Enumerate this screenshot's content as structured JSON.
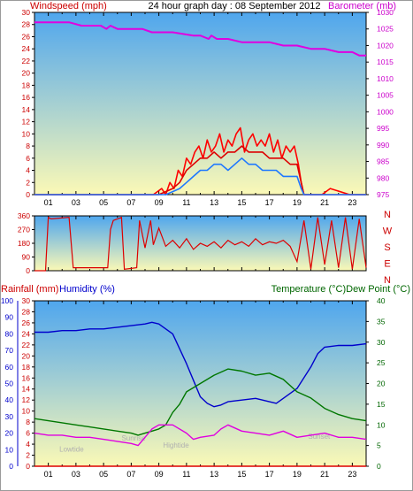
{
  "header": {
    "left_title": "Windspeed (mph)",
    "center_title": "24 hour graph day : 08 September 2012",
    "right_title": "Barometer (mb)"
  },
  "colors": {
    "windspeed": "#dd0000",
    "gust": "#ff0000",
    "average": "#1e78ff",
    "barometer": "#e000e0",
    "direction": "#dd0000",
    "rainfall": "#dd0000",
    "humidity": "#0000cc",
    "temperature": "#007700",
    "dewpoint": "#e000e0",
    "sky_top": "#4fa6ee",
    "sky_bottom": "#fbf9b6"
  },
  "chart_data": [
    {
      "type": "line",
      "name": "wind-and-barometer",
      "x_tick_labels": [
        "01",
        "03",
        "05",
        "07",
        "09",
        "11",
        "13",
        "15",
        "17",
        "19",
        "21",
        "23"
      ],
      "xlim": [
        0,
        24
      ],
      "left_axis": {
        "label": "Windspeed (mph)",
        "ylim": [
          0,
          30
        ],
        "ticks": [
          0,
          2,
          4,
          6,
          8,
          10,
          12,
          14,
          16,
          18,
          20,
          22,
          24,
          26,
          28,
          30
        ]
      },
      "right_axis": {
        "label": "Barometer (mb)",
        "ylim": [
          975,
          1030
        ],
        "ticks": [
          975,
          980,
          985,
          990,
          995,
          1000,
          1005,
          1010,
          1015,
          1020,
          1025,
          1030
        ]
      },
      "series": [
        {
          "name": "gust",
          "axis": "left",
          "x": [
            0,
            8.6,
            9.2,
            9.5,
            9.8,
            10.1,
            10.4,
            10.7,
            11.0,
            11.3,
            11.6,
            11.9,
            12.2,
            12.5,
            12.8,
            13.1,
            13.4,
            13.7,
            14.0,
            14.3,
            14.6,
            14.9,
            15.2,
            15.5,
            15.8,
            16.1,
            16.4,
            16.7,
            17.0,
            17.3,
            17.6,
            17.9,
            18.2,
            18.5,
            18.8,
            19.1,
            19.3,
            19.5,
            20.8,
            21.4,
            22.8,
            24
          ],
          "y": [
            0,
            0,
            1,
            0,
            2,
            1,
            4,
            3,
            6,
            5,
            7,
            8,
            6,
            9,
            7,
            8,
            10,
            7,
            9,
            8,
            10,
            11,
            7,
            9,
            10,
            8,
            9,
            8,
            10,
            7,
            9,
            6,
            8,
            7,
            8,
            5,
            2,
            0,
            0,
            1,
            0,
            0
          ]
        },
        {
          "name": "windspeed",
          "axis": "left",
          "x": [
            0,
            9.0,
            9.5,
            10.0,
            10.5,
            11.0,
            11.5,
            12.0,
            12.5,
            13.0,
            13.5,
            14.0,
            14.5,
            15.0,
            15.5,
            16.0,
            16.5,
            17.0,
            17.5,
            18.0,
            18.5,
            19.0,
            19.3,
            19.5,
            24
          ],
          "y": [
            0,
            0,
            0.5,
            1,
            2,
            4,
            5,
            6,
            6,
            7,
            6,
            7,
            7,
            8,
            7,
            7,
            7,
            6,
            6,
            6,
            5,
            5,
            2,
            0,
            0
          ]
        },
        {
          "name": "average",
          "axis": "left",
          "x": [
            0,
            9.5,
            10.0,
            10.5,
            11.0,
            11.5,
            12.0,
            12.5,
            13.0,
            13.5,
            14.0,
            14.5,
            15.0,
            15.5,
            16.0,
            16.5,
            17.0,
            17.5,
            18.0,
            18.5,
            19.0,
            19.3,
            19.5,
            24
          ],
          "y": [
            0,
            0,
            0.5,
            1,
            2,
            3,
            4,
            4,
            5,
            5,
            4,
            5,
            6,
            5,
            5,
            4,
            4,
            4,
            3,
            3,
            3,
            1,
            0,
            0
          ]
        },
        {
          "name": "barometer",
          "axis": "right",
          "x": [
            0,
            0.5,
            1.5,
            2.5,
            3.4,
            3.5,
            4.8,
            5.2,
            5.5,
            6.0,
            7.0,
            7.8,
            8.5,
            10.0,
            11.5,
            12.0,
            12.6,
            12.8,
            13.2,
            14.0,
            15.0,
            16.0,
            17.0,
            18.0,
            19.0,
            20.0,
            21.0,
            22.0,
            23.0,
            23.5,
            24
          ],
          "y": [
            1027,
            1027,
            1027,
            1027,
            1026,
            1026,
            1026,
            1025,
            1026,
            1025,
            1025,
            1025,
            1024,
            1024,
            1023,
            1023,
            1022,
            1023,
            1022,
            1022,
            1021,
            1021,
            1021,
            1020,
            1020,
            1019,
            1019,
            1018,
            1018,
            1017,
            1017
          ]
        }
      ]
    },
    {
      "type": "line",
      "name": "wind-direction",
      "x_tick_labels": [
        "01",
        "03",
        "05",
        "07",
        "09",
        "11",
        "13",
        "15",
        "17",
        "19",
        "21",
        "23"
      ],
      "xlim": [
        0,
        24
      ],
      "left_axis": {
        "ticks": [
          0,
          90,
          180,
          270,
          360
        ],
        "ylim": [
          0,
          360
        ]
      },
      "right_axis": {
        "labels": [
          "N",
          "W",
          "S",
          "E",
          "N"
        ]
      },
      "series": [
        {
          "name": "direction",
          "x": [
            0,
            0.8,
            1.0,
            1.2,
            2.5,
            2.8,
            3.0,
            5.3,
            5.5,
            5.7,
            6.3,
            6.5,
            7.4,
            7.6,
            8.0,
            8.4,
            8.6,
            9.0,
            9.5,
            10.0,
            10.5,
            11.0,
            11.5,
            12.0,
            12.5,
            13.0,
            13.5,
            14.0,
            14.5,
            15.0,
            15.5,
            16.0,
            16.5,
            17.0,
            17.5,
            18.0,
            18.5,
            19.0,
            19.5,
            20.0,
            20.5,
            21.0,
            21.5,
            22.0,
            22.5,
            23.0,
            23.5,
            24
          ],
          "y": [
            0,
            0,
            350,
            340,
            350,
            20,
            20,
            20,
            270,
            330,
            350,
            10,
            20,
            330,
            150,
            330,
            170,
            280,
            160,
            200,
            150,
            210,
            140,
            180,
            160,
            190,
            150,
            200,
            170,
            190,
            160,
            210,
            170,
            190,
            180,
            200,
            160,
            60,
            330,
            10,
            350,
            40,
            330,
            20,
            350,
            10,
            340,
            20
          ]
        }
      ]
    },
    {
      "type": "line",
      "name": "rain-humidity-temperature",
      "x_tick_labels": [
        "01",
        "03",
        "05",
        "07",
        "09",
        "11",
        "13",
        "15",
        "17",
        "19",
        "21",
        "23"
      ],
      "xlim": [
        0,
        24
      ],
      "axes": {
        "humidity": {
          "label": "Humidity (%)",
          "ylim": [
            0,
            100
          ],
          "ticks": [
            0,
            10,
            20,
            30,
            40,
            50,
            60,
            70,
            80,
            90,
            100
          ]
        },
        "rainfall": {
          "label": "Rainfall (mm)",
          "ylim": [
            0,
            30
          ],
          "ticks": [
            0,
            2,
            4,
            6,
            8,
            10,
            12,
            14,
            16,
            18,
            20,
            22,
            24,
            26,
            28,
            30
          ]
        },
        "temperature": {
          "label": "Temperature (°C)Dew Point (°C)",
          "ylim": [
            0,
            40
          ],
          "ticks": [
            0,
            5,
            10,
            15,
            20,
            25,
            30,
            35,
            40
          ]
        }
      },
      "annotations": [
        {
          "text": "Lowtide",
          "x": 1.8,
          "y": 3.5
        },
        {
          "text": "Sunrise",
          "x": 6.3,
          "y": 6.2
        },
        {
          "text": "Hightide",
          "x": 9.3,
          "y": 4.5
        },
        {
          "text": "Sunset",
          "x": 19.8,
          "y": 6.6
        }
      ],
      "series": [
        {
          "name": "Humidity",
          "axis": "humidity",
          "x": [
            0,
            1,
            2,
            3,
            4,
            5,
            6,
            7,
            8,
            8.5,
            9,
            10,
            11,
            11.5,
            12,
            12.5,
            13,
            13.5,
            14,
            15,
            16,
            17,
            17.5,
            18,
            19,
            20,
            20.5,
            21,
            22,
            23,
            24
          ],
          "y": [
            81,
            81,
            82,
            82,
            83,
            83,
            84,
            85,
            86,
            87,
            86,
            80,
            62,
            52,
            42,
            38,
            36,
            37,
            39,
            40,
            41,
            39,
            38,
            41,
            47,
            60,
            68,
            72,
            73,
            73,
            74
          ]
        },
        {
          "name": "Temperature",
          "axis": "temperature",
          "x": [
            0,
            1,
            2,
            3,
            4,
            5,
            6,
            7,
            7.5,
            8,
            8.5,
            9,
            9.5,
            10,
            10.5,
            11,
            12,
            13,
            14,
            15,
            16,
            17,
            18,
            19,
            20,
            21,
            22,
            23,
            24
          ],
          "y": [
            11.5,
            11,
            10.5,
            10,
            9.5,
            9,
            8.5,
            8,
            7.5,
            8,
            8.5,
            9,
            10,
            13,
            15,
            18,
            20,
            22,
            23.5,
            23,
            22,
            22.5,
            21,
            18,
            16.5,
            14,
            12.5,
            11.5,
            11
          ]
        },
        {
          "name": "Dew Point",
          "axis": "temperature",
          "x": [
            0,
            1,
            2,
            3,
            4,
            5,
            6,
            7,
            7.5,
            8,
            8.5,
            9,
            9.5,
            10,
            11,
            11.5,
            12,
            13,
            13.5,
            14,
            15,
            16,
            17,
            18,
            19,
            20,
            21,
            22,
            23,
            24
          ],
          "y": [
            8,
            7.5,
            7.5,
            7,
            7,
            6.5,
            6,
            5.5,
            5,
            7,
            9,
            10,
            10,
            10,
            8,
            6.5,
            7,
            7.5,
            9,
            10,
            8.5,
            8,
            7.5,
            8.5,
            7,
            7.5,
            8,
            7,
            7,
            6.5
          ]
        },
        {
          "name": "Rainfall",
          "axis": "rainfall",
          "x": [
            0,
            24
          ],
          "y": [
            0,
            0
          ]
        }
      ]
    }
  ]
}
